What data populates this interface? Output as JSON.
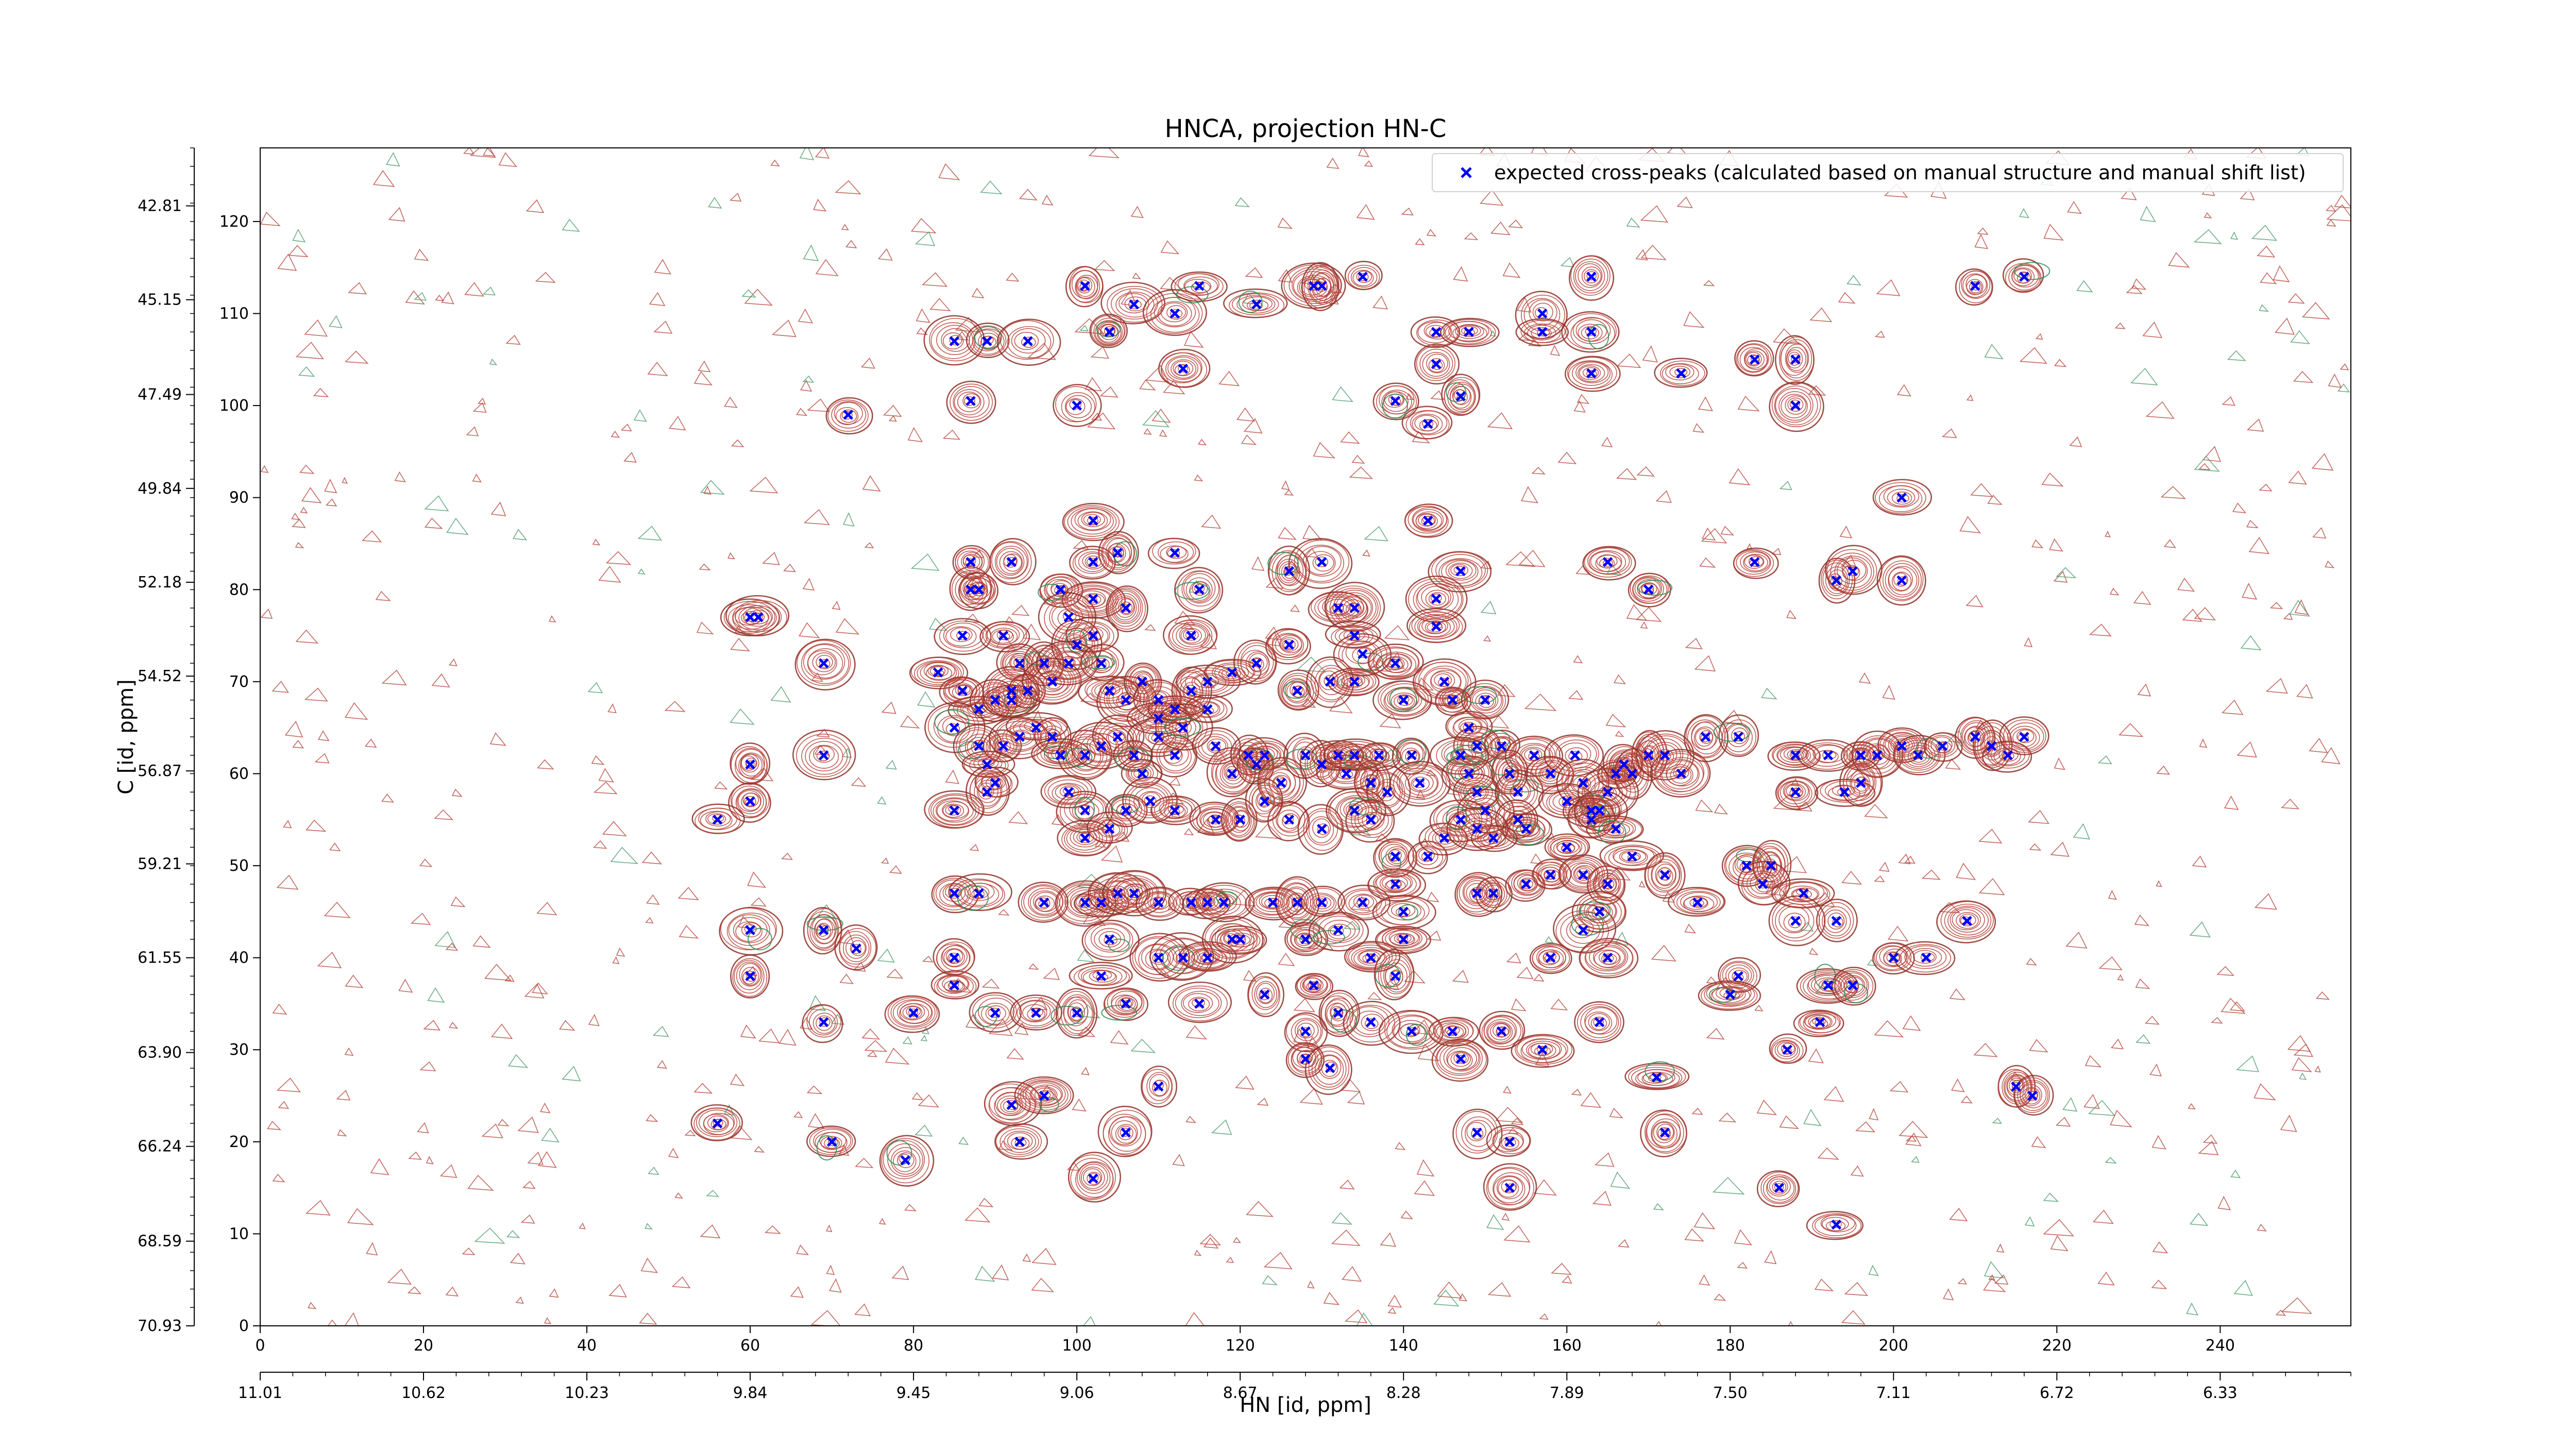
{
  "chart_data": {
    "type": "scatter",
    "title": "HNCA, projection HN-C",
    "xlabel": "HN [id, ppm]",
    "ylabel": "C [id, ppm]",
    "xlim": [
      0,
      256
    ],
    "ylim": [
      0,
      128
    ],
    "x_ticks": [
      0,
      20,
      40,
      60,
      80,
      100,
      120,
      140,
      160,
      180,
      200,
      220,
      240
    ],
    "y_ticks": [
      0,
      10,
      20,
      30,
      40,
      50,
      60,
      70,
      80,
      90,
      100,
      110,
      120
    ],
    "x_ppm_ticks": [
      {
        "x": 0,
        "label": "11.01"
      },
      {
        "x": 20,
        "label": "10.62"
      },
      {
        "x": 40,
        "label": "10.23"
      },
      {
        "x": 60,
        "label": "9.84"
      },
      {
        "x": 80,
        "label": "9.45"
      },
      {
        "x": 100,
        "label": "9.06"
      },
      {
        "x": 120,
        "label": "8.67"
      },
      {
        "x": 140,
        "label": "8.28"
      },
      {
        "x": 160,
        "label": "7.89"
      },
      {
        "x": 180,
        "label": "7.50"
      },
      {
        "x": 200,
        "label": "7.11"
      },
      {
        "x": 220,
        "label": "6.72"
      },
      {
        "x": 240,
        "label": "6.33"
      }
    ],
    "y_ppm_ticks": [
      {
        "y": 0.0,
        "label": "70.93"
      },
      {
        "y": 9.2,
        "label": "68.59"
      },
      {
        "y": 19.5,
        "label": "66.24"
      },
      {
        "y": 29.7,
        "label": "63.90"
      },
      {
        "y": 40.0,
        "label": "61.55"
      },
      {
        "y": 50.2,
        "label": "59.21"
      },
      {
        "y": 60.3,
        "label": "56.87"
      },
      {
        "y": 70.6,
        "label": "54.52"
      },
      {
        "y": 80.8,
        "label": "52.18"
      },
      {
        "y": 91.0,
        "label": "49.84"
      },
      {
        "y": 101.2,
        "label": "47.49"
      },
      {
        "y": 111.5,
        "label": "45.15"
      },
      {
        "y": 121.7,
        "label": "42.81"
      }
    ],
    "grid": false,
    "legend_position": "top-right",
    "series": [
      {
        "name": "expected cross-peaks (calculated based on manual structure and manual shift list)",
        "color": "#0000ff",
        "marker": "x",
        "points": [
          [
            85,
            107
          ],
          [
            89,
            107
          ],
          [
            94,
            107
          ],
          [
            87,
            100.5
          ],
          [
            101,
            113
          ],
          [
            107,
            111
          ],
          [
            112,
            110
          ],
          [
            115,
            113
          ],
          [
            122,
            111
          ],
          [
            104,
            108
          ],
          [
            113,
            104
          ],
          [
            129,
            113
          ],
          [
            130,
            113
          ],
          [
            135,
            114
          ],
          [
            144,
            104.5
          ],
          [
            144,
            108
          ],
          [
            148,
            108
          ],
          [
            157,
            110
          ],
          [
            157,
            108
          ],
          [
            163,
            108
          ],
          [
            163,
            114
          ],
          [
            163,
            103.5
          ],
          [
            174,
            103.5
          ],
          [
            183,
            105
          ],
          [
            188,
            105
          ],
          [
            188,
            100
          ],
          [
            210,
            113
          ],
          [
            216,
            114
          ],
          [
            72,
            99
          ],
          [
            100,
            100
          ],
          [
            139,
            100.5
          ],
          [
            147,
            101
          ],
          [
            143,
            98
          ],
          [
            102,
            87.5
          ],
          [
            87,
            80
          ],
          [
            87,
            83
          ],
          [
            88,
            80
          ],
          [
            92,
            83
          ],
          [
            98,
            80
          ],
          [
            102,
            83
          ],
          [
            102,
            79
          ],
          [
            105,
            84
          ],
          [
            106,
            78
          ],
          [
            112,
            84
          ],
          [
            99,
            77
          ],
          [
            115,
            80
          ],
          [
            130,
            83
          ],
          [
            126,
            82
          ],
          [
            132,
            78
          ],
          [
            134,
            78
          ],
          [
            134,
            75
          ],
          [
            143,
            87.5
          ],
          [
            147,
            82
          ],
          [
            144,
            79
          ],
          [
            144,
            76
          ],
          [
            165,
            83
          ],
          [
            170,
            80
          ],
          [
            183,
            83
          ],
          [
            193,
            81
          ],
          [
            195,
            82
          ],
          [
            201,
            90
          ],
          [
            201,
            81
          ],
          [
            60,
            77
          ],
          [
            61,
            77
          ],
          [
            69,
            72
          ],
          [
            69,
            62
          ],
          [
            60,
            61
          ],
          [
            60,
            57
          ],
          [
            56,
            55
          ],
          [
            83,
            71
          ],
          [
            86,
            75
          ],
          [
            91,
            75
          ],
          [
            93,
            72
          ],
          [
            86,
            69
          ],
          [
            88,
            67
          ],
          [
            90,
            68
          ],
          [
            92,
            69
          ],
          [
            92,
            68
          ],
          [
            94,
            69
          ],
          [
            96,
            72
          ],
          [
            97,
            70
          ],
          [
            99,
            72
          ],
          [
            100,
            74
          ],
          [
            102,
            75
          ],
          [
            103,
            72
          ],
          [
            104,
            69
          ],
          [
            106,
            68
          ],
          [
            108,
            70
          ],
          [
            110,
            68
          ],
          [
            110,
            66
          ],
          [
            112,
            67
          ],
          [
            114,
            69
          ],
          [
            116,
            67
          ],
          [
            114,
            75
          ],
          [
            116,
            70
          ],
          [
            119,
            71
          ],
          [
            122,
            72
          ],
          [
            126,
            74
          ],
          [
            127,
            69
          ],
          [
            131,
            70
          ],
          [
            134,
            70
          ],
          [
            135,
            73
          ],
          [
            140,
            68
          ],
          [
            139,
            72
          ],
          [
            145,
            70
          ],
          [
            146,
            68
          ],
          [
            148,
            65
          ],
          [
            149,
            63
          ],
          [
            150,
            68
          ],
          [
            85,
            65
          ],
          [
            88,
            63
          ],
          [
            91,
            63
          ],
          [
            89,
            61
          ],
          [
            90,
            59
          ],
          [
            93,
            64
          ],
          [
            95,
            65
          ],
          [
            97,
            64
          ],
          [
            98,
            62
          ],
          [
            101,
            62
          ],
          [
            103,
            63
          ],
          [
            105,
            64
          ],
          [
            107,
            62
          ],
          [
            108,
            60
          ],
          [
            110,
            64
          ],
          [
            112,
            62
          ],
          [
            113,
            65
          ],
          [
            117,
            63
          ],
          [
            119,
            60
          ],
          [
            121,
            62
          ],
          [
            122,
            61
          ],
          [
            123,
            62
          ],
          [
            125,
            59
          ],
          [
            126,
            55
          ],
          [
            128,
            62
          ],
          [
            130,
            61
          ],
          [
            132,
            62
          ],
          [
            133,
            60
          ],
          [
            134,
            62
          ],
          [
            136,
            59
          ],
          [
            138,
            58
          ],
          [
            137,
            62
          ],
          [
            141,
            62
          ],
          [
            142,
            59
          ],
          [
            147,
            62
          ],
          [
            148,
            60
          ],
          [
            149,
            58
          ],
          [
            150,
            56
          ],
          [
            152,
            63
          ],
          [
            153,
            60
          ],
          [
            154,
            58
          ],
          [
            154,
            55
          ],
          [
            155,
            54
          ],
          [
            156,
            62
          ],
          [
            158,
            60
          ],
          [
            160,
            57
          ],
          [
            161,
            62
          ],
          [
            162,
            59
          ],
          [
            163,
            56
          ],
          [
            165,
            58
          ],
          [
            166,
            60
          ],
          [
            167,
            61
          ],
          [
            168,
            60
          ],
          [
            170,
            62
          ],
          [
            172,
            62
          ],
          [
            174,
            60
          ],
          [
            177,
            64
          ],
          [
            181,
            64
          ],
          [
            188,
            62
          ],
          [
            192,
            62
          ],
          [
            194,
            58
          ],
          [
            196,
            62
          ],
          [
            198,
            62
          ],
          [
            201,
            63
          ],
          [
            203,
            62
          ],
          [
            206,
            63
          ],
          [
            210,
            64
          ],
          [
            212,
            63
          ],
          [
            214,
            62
          ],
          [
            216,
            64
          ],
          [
            188,
            58
          ],
          [
            196,
            59
          ],
          [
            85,
            56
          ],
          [
            89,
            58
          ],
          [
            99,
            58
          ],
          [
            101,
            56
          ],
          [
            101,
            53
          ],
          [
            104,
            54
          ],
          [
            106,
            56
          ],
          [
            109,
            57
          ],
          [
            112,
            56
          ],
          [
            117,
            55
          ],
          [
            120,
            55
          ],
          [
            123,
            57
          ],
          [
            130,
            54
          ],
          [
            134,
            56
          ],
          [
            136,
            55
          ],
          [
            139,
            51
          ],
          [
            143,
            51
          ],
          [
            145,
            53
          ],
          [
            147,
            55
          ],
          [
            149,
            54
          ],
          [
            151,
            53
          ],
          [
            160,
            52
          ],
          [
            163,
            55
          ],
          [
            164,
            56
          ],
          [
            166,
            54
          ],
          [
            168,
            51
          ],
          [
            182,
            50
          ],
          [
            185,
            50
          ],
          [
            85,
            47
          ],
          [
            96,
            46
          ],
          [
            101,
            46
          ],
          [
            103,
            46
          ],
          [
            105,
            47
          ],
          [
            107,
            47
          ],
          [
            110,
            46
          ],
          [
            114,
            46
          ],
          [
            116,
            46
          ],
          [
            118,
            46
          ],
          [
            124,
            46
          ],
          [
            127,
            46
          ],
          [
            130,
            46
          ],
          [
            135,
            46
          ],
          [
            139,
            48
          ],
          [
            140,
            45
          ],
          [
            149,
            47
          ],
          [
            151,
            47
          ],
          [
            155,
            48
          ],
          [
            158,
            49
          ],
          [
            162,
            49
          ],
          [
            165,
            48
          ],
          [
            172,
            49
          ],
          [
            176,
            46
          ],
          [
            184,
            48
          ],
          [
            189,
            47
          ],
          [
            209,
            44
          ],
          [
            60,
            43
          ],
          [
            69,
            43
          ],
          [
            73,
            41
          ],
          [
            60,
            38
          ],
          [
            69,
            33
          ],
          [
            80,
            34
          ],
          [
            85,
            37
          ],
          [
            85,
            40
          ],
          [
            90,
            34
          ],
          [
            95,
            34
          ],
          [
            100,
            34
          ],
          [
            103,
            38
          ],
          [
            104,
            42
          ],
          [
            106,
            35
          ],
          [
            110,
            40
          ],
          [
            113,
            40
          ],
          [
            115,
            35
          ],
          [
            116,
            40
          ],
          [
            119,
            42
          ],
          [
            120,
            42
          ],
          [
            123,
            36
          ],
          [
            128,
            42
          ],
          [
            132,
            43
          ],
          [
            136,
            40
          ],
          [
            140,
            42
          ],
          [
            139,
            38
          ],
          [
            132,
            34
          ],
          [
            136,
            33
          ],
          [
            141,
            32
          ],
          [
            146,
            32
          ],
          [
            152,
            32
          ],
          [
            158,
            40
          ],
          [
            162,
            43
          ],
          [
            164,
            45
          ],
          [
            165,
            40
          ],
          [
            181,
            38
          ],
          [
            188,
            44
          ],
          [
            193,
            44
          ],
          [
            192,
            37
          ],
          [
            195,
            37
          ],
          [
            200,
            40
          ],
          [
            204,
            40
          ],
          [
            129,
            37
          ],
          [
            128,
            32
          ],
          [
            128,
            29
          ],
          [
            131,
            28
          ],
          [
            147,
            29
          ],
          [
            157,
            30
          ],
          [
            164,
            33
          ],
          [
            171,
            27
          ],
          [
            180,
            36
          ],
          [
            187,
            30
          ],
          [
            191,
            33
          ],
          [
            110,
            26
          ],
          [
            92,
            24
          ],
          [
            96,
            25
          ],
          [
            93,
            20
          ],
          [
            106,
            21
          ],
          [
            102,
            16
          ],
          [
            79,
            18
          ],
          [
            149,
            21
          ],
          [
            153,
            20
          ],
          [
            153,
            15
          ],
          [
            172,
            21
          ],
          [
            186,
            15
          ],
          [
            193,
            11
          ],
          [
            215,
            26
          ],
          [
            217,
            25
          ],
          [
            56,
            22
          ],
          [
            70,
            20
          ],
          [
            88,
            47
          ]
        ]
      }
    ]
  }
}
